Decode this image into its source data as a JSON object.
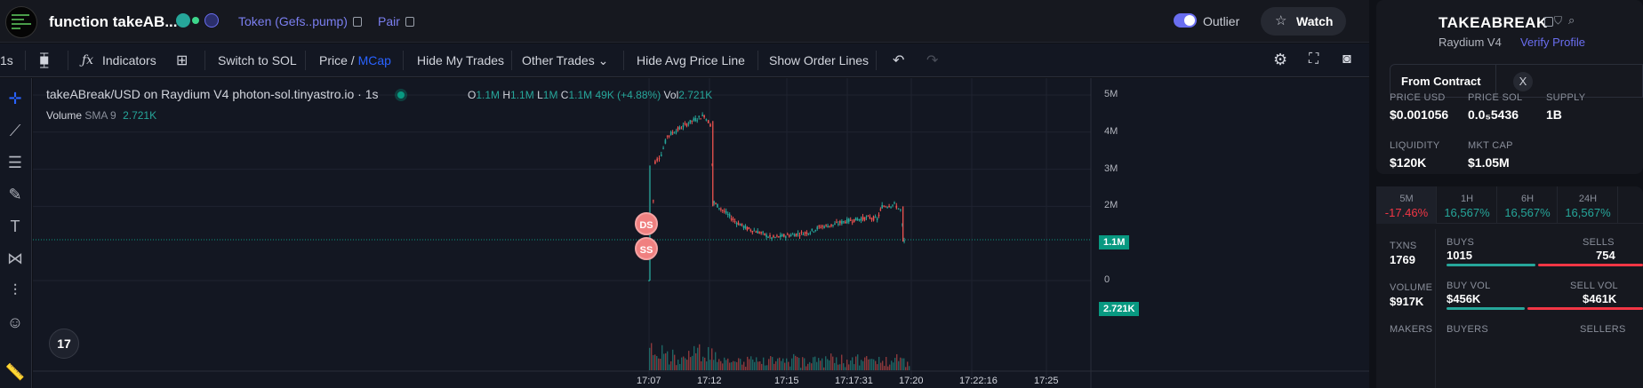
{
  "header": {
    "token_name": "function takeAB...",
    "token_link": "Token (Gefs..pump)",
    "pair_link": "Pair",
    "outlier_label": "Outlier",
    "watch_label": "Watch"
  },
  "toolbar": {
    "interval": "1s",
    "indicators": "Indicators",
    "switch_sol": "Switch to SOL",
    "price_label": "Price /",
    "mcap_label": "MCap",
    "hide_my_trades": "Hide My Trades",
    "other_trades": "Other Trades",
    "hide_avg_price": "Hide Avg Price Line",
    "show_order_lines": "Show Order Lines"
  },
  "chart": {
    "symbol_title": "takeABreak/USD on Raydium V4 photon-sol.tinyastro.io · 1s",
    "ohlc": {
      "o_label": "O",
      "o": "1.1M",
      "h_label": "H",
      "h": "1.1M",
      "l_label": "L",
      "l": "1M",
      "c_label": "C",
      "c": "1.1M",
      "change": "49K (+4.88%)",
      "vol_label": "Vol",
      "vol": "2.721K"
    },
    "volume_legend": {
      "label": "Volume",
      "sma": "SMA 9",
      "value": "2.721K"
    },
    "tv_logo": "17",
    "current_price_tag": "1.1M",
    "current_volume_tag": "2.721K",
    "markers": [
      "DS",
      "SS"
    ]
  },
  "chart_data": {
    "type": "candlestick",
    "y_ticks": [
      "5M",
      "4M",
      "3M",
      "2M",
      "0"
    ],
    "x_ticks": [
      "17:07",
      "17:12",
      "17:15",
      "17:17:31",
      "17:20",
      "17:22:16",
      "17:25"
    ],
    "ylim": [
      0,
      5000000
    ],
    "path_points": [
      [
        0,
        0
      ],
      [
        0.2,
        1.1
      ],
      [
        0.5,
        3.2
      ],
      [
        1,
        3.4
      ],
      [
        1.5,
        3.9
      ],
      [
        2.5,
        4.1
      ],
      [
        3.5,
        4.3
      ],
      [
        4.5,
        4.45
      ],
      [
        5,
        4.2
      ],
      [
        5.3,
        2.1
      ],
      [
        6,
        1.9
      ],
      [
        7,
        1.6
      ],
      [
        8,
        1.4
      ],
      [
        9,
        1.3
      ],
      [
        10,
        1.15
      ],
      [
        11,
        1.2
      ],
      [
        12,
        1.25
      ],
      [
        13,
        1.3
      ],
      [
        14,
        1.45
      ],
      [
        15,
        1.5
      ],
      [
        16,
        1.6
      ],
      [
        17,
        1.65
      ],
      [
        18,
        1.7
      ],
      [
        18.6,
        1.65
      ],
      [
        19,
        2.0
      ],
      [
        20,
        2.05
      ],
      [
        20.5,
        1.9
      ],
      [
        20.8,
        1.05
      ],
      [
        21,
        1.1
      ]
    ],
    "current_value": 1100000
  },
  "rightpanel": {
    "name": "TAKEABREAK",
    "dex": "Raydium V4",
    "verify": "Verify Profile",
    "from_contract": "From Contract",
    "x_icon": "X",
    "stats": [
      {
        "label": "PRICE USD",
        "value": "$0.001056"
      },
      {
        "label": "PRICE SOL",
        "value": "0.0₅5436"
      },
      {
        "label": "SUPPLY",
        "value": "1B"
      },
      {
        "label": "LIQUIDITY",
        "value": "$120K"
      },
      {
        "label": "MKT CAP",
        "value": "$1.05M"
      }
    ],
    "timeframes": [
      {
        "label": "5M",
        "value": "-17.46%",
        "color": "#f23645"
      },
      {
        "label": "1H",
        "value": "16,567%",
        "color": "#26a69a"
      },
      {
        "label": "6H",
        "value": "16,567%",
        "color": "#26a69a"
      },
      {
        "label": "24H",
        "value": "16,567%",
        "color": "#26a69a"
      }
    ],
    "txns_label": "TXNS",
    "txns_value": "1769",
    "volume_label": "VOLUME",
    "volume_value": "$917K",
    "makers_label": "MAKERS",
    "buys_label": "BUYS",
    "buys_value": "1015",
    "sells_label": "SELLS",
    "sells_value": "754",
    "buy_vol_label": "BUY VOL",
    "buy_vol_value": "$456K",
    "sell_vol_label": "SELL VOL",
    "sell_vol_value": "$461K",
    "buyers_label": "BUYERS",
    "sellers_label": "SELLERS",
    "buy_color": "#26a69a",
    "sell_color": "#f23645"
  }
}
